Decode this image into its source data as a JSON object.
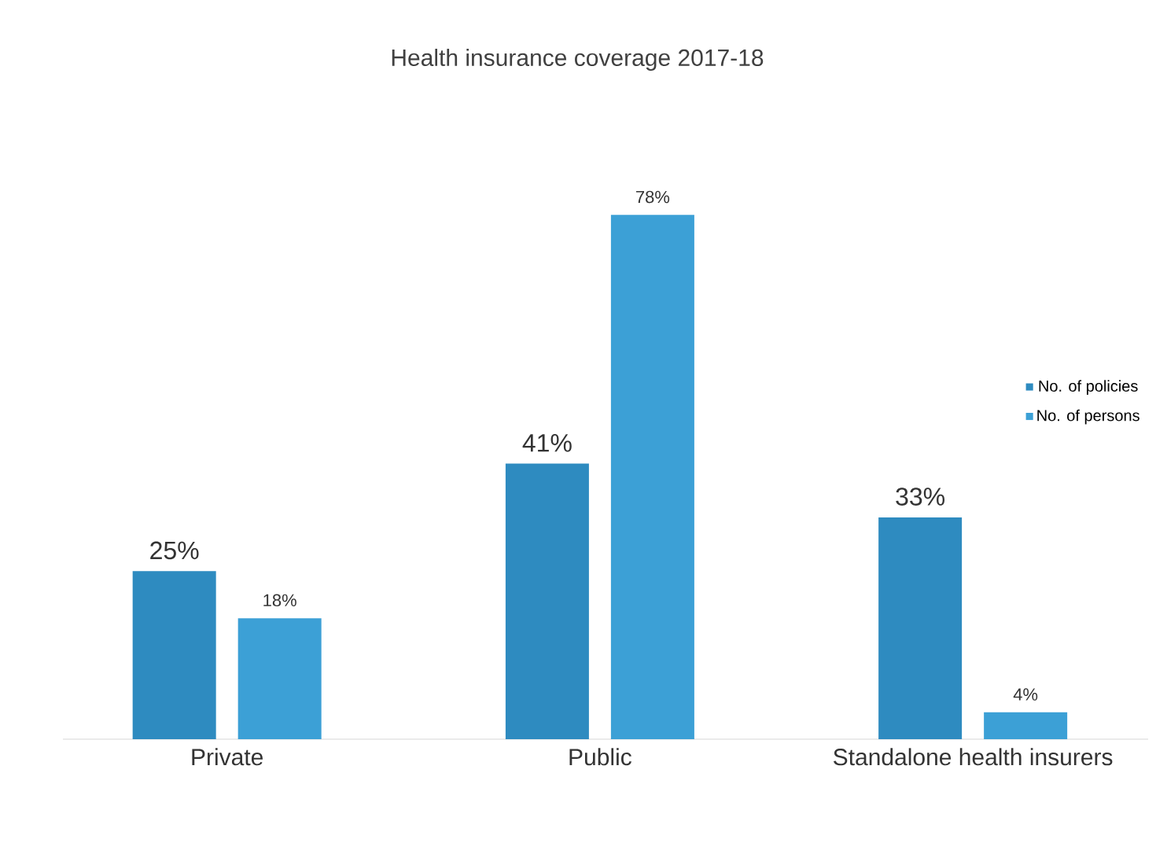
{
  "chart_data": {
    "type": "bar",
    "title": "Health insurance coverage 2017-18",
    "categories": [
      "Private",
      "Public",
      "Standalone health insurers"
    ],
    "series": [
      {
        "name": "No. of policies",
        "color": "#2e8bc0",
        "values": [
          25,
          41,
          33
        ],
        "value_labels": [
          "25%",
          "41%",
          "33%"
        ]
      },
      {
        "name": "No. of persons",
        "color": "#3ca0d6",
        "values": [
          18,
          78,
          4
        ],
        "value_labels": [
          "18%",
          "78%",
          "4%"
        ]
      }
    ],
    "tick_labels": "x",
    "legend": "right"
  }
}
